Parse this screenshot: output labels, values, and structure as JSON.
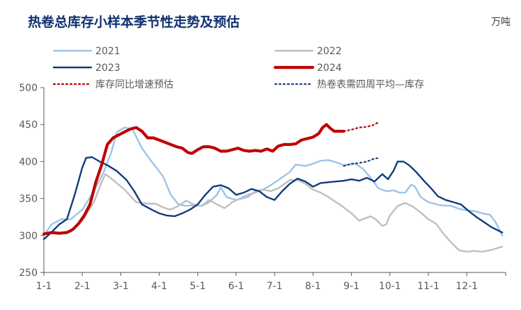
{
  "chart_data": {
    "type": "line",
    "title": "热卷总库存小样本季节性走势及预估",
    "unit": "万吨",
    "ylim": [
      250,
      500
    ],
    "yticks": [
      250,
      300,
      350,
      400,
      450,
      500
    ],
    "xticks": [
      "1-1",
      "2-1",
      "3-1",
      "4-1",
      "5-1",
      "6-1",
      "7-1",
      "8-1",
      "9-1",
      "10-1",
      "11-1",
      "12-1"
    ],
    "xlim": [
      0,
      11.92
    ],
    "grid": false,
    "legend": "top",
    "series": [
      {
        "name": "2021",
        "color": "#9DC3E6",
        "width": 2.4,
        "dash": false,
        "points": [
          [
            0,
            300
          ],
          [
            0.2,
            315
          ],
          [
            0.45,
            322
          ],
          [
            0.7,
            322
          ],
          [
            1.0,
            335
          ],
          [
            1.3,
            360
          ],
          [
            1.55,
            385
          ],
          [
            1.75,
            412
          ],
          [
            1.9,
            440
          ],
          [
            2.1,
            446
          ],
          [
            2.3,
            444
          ],
          [
            2.55,
            418
          ],
          [
            2.8,
            400
          ],
          [
            3.1,
            380
          ],
          [
            3.3,
            355
          ],
          [
            3.5,
            342
          ],
          [
            3.7,
            340
          ],
          [
            3.9,
            341
          ],
          [
            4.1,
            340
          ],
          [
            4.3,
            345
          ],
          [
            4.5,
            355
          ],
          [
            4.6,
            365
          ],
          [
            4.75,
            352
          ],
          [
            5.0,
            348
          ],
          [
            5.3,
            352
          ],
          [
            5.5,
            360
          ],
          [
            5.7,
            362
          ],
          [
            5.9,
            368
          ],
          [
            6.1,
            375
          ],
          [
            6.4,
            386
          ],
          [
            6.55,
            396
          ],
          [
            6.8,
            394
          ],
          [
            7.0,
            397
          ],
          [
            7.2,
            401
          ],
          [
            7.4,
            402
          ],
          [
            7.6,
            399
          ],
          [
            7.8,
            395
          ],
          [
            8.1,
            397
          ],
          [
            8.3,
            390
          ],
          [
            8.5,
            378
          ],
          [
            8.7,
            364
          ],
          [
            8.9,
            360
          ],
          [
            9.1,
            361
          ],
          [
            9.25,
            358
          ],
          [
            9.4,
            358
          ],
          [
            9.55,
            369
          ],
          [
            9.65,
            366
          ],
          [
            9.8,
            352
          ],
          [
            10.0,
            345
          ],
          [
            10.3,
            341
          ],
          [
            10.6,
            340
          ],
          [
            10.8,
            336
          ],
          [
            11.0,
            334
          ],
          [
            11.2,
            333
          ],
          [
            11.4,
            330
          ],
          [
            11.6,
            328
          ],
          [
            11.75,
            318
          ],
          [
            11.92,
            300
          ]
        ]
      },
      {
        "name": "2022",
        "color": "#BFBFBF",
        "width": 2.4,
        "dash": false,
        "points": [
          [
            0,
            302
          ],
          [
            0.3,
            303
          ],
          [
            0.7,
            305
          ],
          [
            1.0,
            320
          ],
          [
            1.3,
            345
          ],
          [
            1.5,
            372
          ],
          [
            1.6,
            383
          ],
          [
            1.8,
            375
          ],
          [
            2.1,
            362
          ],
          [
            2.4,
            345
          ],
          [
            2.7,
            343
          ],
          [
            2.9,
            343
          ],
          [
            3.1,
            338
          ],
          [
            3.3,
            335
          ],
          [
            3.5,
            340
          ],
          [
            3.7,
            347
          ],
          [
            3.9,
            342
          ],
          [
            4.1,
            340
          ],
          [
            4.3,
            348
          ],
          [
            4.5,
            342
          ],
          [
            4.7,
            337
          ],
          [
            4.9,
            345
          ],
          [
            5.1,
            350
          ],
          [
            5.3,
            355
          ],
          [
            5.5,
            358
          ],
          [
            5.7,
            362
          ],
          [
            5.9,
            360
          ],
          [
            6.1,
            364
          ],
          [
            6.4,
            375
          ],
          [
            6.6,
            375
          ],
          [
            6.8,
            370
          ],
          [
            7.0,
            362
          ],
          [
            7.2,
            358
          ],
          [
            7.4,
            352
          ],
          [
            7.6,
            345
          ],
          [
            7.8,
            338
          ],
          [
            8.0,
            330
          ],
          [
            8.2,
            320
          ],
          [
            8.35,
            323
          ],
          [
            8.5,
            326
          ],
          [
            8.65,
            321
          ],
          [
            8.8,
            313
          ],
          [
            8.9,
            315
          ],
          [
            9.0,
            327
          ],
          [
            9.2,
            340
          ],
          [
            9.4,
            344
          ],
          [
            9.6,
            339
          ],
          [
            9.8,
            331
          ],
          [
            10.0,
            322
          ],
          [
            10.2,
            316
          ],
          [
            10.4,
            302
          ],
          [
            10.6,
            290
          ],
          [
            10.8,
            280
          ],
          [
            11.0,
            278
          ],
          [
            11.2,
            279
          ],
          [
            11.4,
            278
          ],
          [
            11.6,
            280
          ],
          [
            11.8,
            283
          ],
          [
            11.92,
            285
          ]
        ]
      },
      {
        "name": "2023",
        "color": "#0F3B7E",
        "width": 2.4,
        "dash": false,
        "points": [
          [
            0,
            295
          ],
          [
            0.15,
            302
          ],
          [
            0.4,
            315
          ],
          [
            0.6,
            322
          ],
          [
            0.8,
            355
          ],
          [
            1.0,
            392
          ],
          [
            1.1,
            405
          ],
          [
            1.25,
            406
          ],
          [
            1.45,
            400
          ],
          [
            1.65,
            395
          ],
          [
            1.9,
            387
          ],
          [
            2.15,
            375
          ],
          [
            2.35,
            360
          ],
          [
            2.55,
            342
          ],
          [
            2.8,
            335
          ],
          [
            3.0,
            330
          ],
          [
            3.2,
            327
          ],
          [
            3.4,
            326
          ],
          [
            3.6,
            330
          ],
          [
            3.8,
            335
          ],
          [
            4.0,
            342
          ],
          [
            4.2,
            355
          ],
          [
            4.4,
            366
          ],
          [
            4.6,
            368
          ],
          [
            4.8,
            364
          ],
          [
            5.0,
            355
          ],
          [
            5.2,
            358
          ],
          [
            5.4,
            363
          ],
          [
            5.6,
            360
          ],
          [
            5.8,
            352
          ],
          [
            6.0,
            348
          ],
          [
            6.2,
            360
          ],
          [
            6.4,
            370
          ],
          [
            6.6,
            377
          ],
          [
            6.8,
            373
          ],
          [
            7.0,
            366
          ],
          [
            7.2,
            371
          ],
          [
            7.4,
            372
          ],
          [
            7.6,
            373
          ],
          [
            7.8,
            374
          ],
          [
            8.0,
            376
          ],
          [
            8.2,
            374
          ],
          [
            8.4,
            378
          ],
          [
            8.6,
            373
          ],
          [
            8.8,
            383
          ],
          [
            8.95,
            376
          ],
          [
            9.1,
            388
          ],
          [
            9.2,
            400
          ],
          [
            9.35,
            400
          ],
          [
            9.5,
            395
          ],
          [
            9.7,
            385
          ],
          [
            9.9,
            373
          ],
          [
            10.05,
            365
          ],
          [
            10.25,
            353
          ],
          [
            10.45,
            348
          ],
          [
            10.65,
            345
          ],
          [
            10.85,
            342
          ],
          [
            11.05,
            333
          ],
          [
            11.25,
            325
          ],
          [
            11.45,
            318
          ],
          [
            11.65,
            311
          ],
          [
            11.92,
            304
          ]
        ]
      },
      {
        "name": "2024",
        "color": "#C00000",
        "width": 4.2,
        "dash": false,
        "points": [
          [
            0,
            302
          ],
          [
            0.2,
            304
          ],
          [
            0.4,
            303
          ],
          [
            0.6,
            304
          ],
          [
            0.75,
            308
          ],
          [
            0.9,
            316
          ],
          [
            1.05,
            327
          ],
          [
            1.2,
            342
          ],
          [
            1.35,
            372
          ],
          [
            1.5,
            395
          ],
          [
            1.65,
            423
          ],
          [
            1.8,
            432
          ],
          [
            1.95,
            436
          ],
          [
            2.1,
            440
          ],
          [
            2.25,
            444
          ],
          [
            2.4,
            446
          ],
          [
            2.55,
            441
          ],
          [
            2.7,
            432
          ],
          [
            2.85,
            432
          ],
          [
            3.0,
            429
          ],
          [
            3.15,
            426
          ],
          [
            3.3,
            423
          ],
          [
            3.45,
            420
          ],
          [
            3.6,
            418
          ],
          [
            3.75,
            412
          ],
          [
            3.85,
            411
          ],
          [
            4.0,
            416
          ],
          [
            4.15,
            420
          ],
          [
            4.3,
            420
          ],
          [
            4.45,
            418
          ],
          [
            4.6,
            414
          ],
          [
            4.75,
            414
          ],
          [
            4.9,
            416
          ],
          [
            5.05,
            418
          ],
          [
            5.2,
            415
          ],
          [
            5.35,
            414
          ],
          [
            5.5,
            415
          ],
          [
            5.65,
            414
          ],
          [
            5.8,
            417
          ],
          [
            5.95,
            414
          ],
          [
            6.1,
            421
          ],
          [
            6.25,
            423
          ],
          [
            6.4,
            423
          ],
          [
            6.55,
            424
          ],
          [
            6.7,
            429
          ],
          [
            6.85,
            431
          ],
          [
            7.0,
            433
          ],
          [
            7.15,
            438
          ],
          [
            7.25,
            446
          ],
          [
            7.35,
            450
          ],
          [
            7.45,
            445
          ],
          [
            7.55,
            441
          ],
          [
            7.8,
            441
          ]
        ]
      },
      {
        "name": "库存同比增速预估",
        "color": "#C00000",
        "width": 2.2,
        "dash": true,
        "points": [
          [
            7.8,
            441
          ],
          [
            8.0,
            443
          ],
          [
            8.2,
            446
          ],
          [
            8.4,
            447
          ],
          [
            8.55,
            449
          ],
          [
            8.7,
            453
          ]
        ]
      },
      {
        "name": "热卷表需四周平均—库存",
        "color": "#1F3F78",
        "width": 2.2,
        "dash": true,
        "points": [
          [
            7.8,
            394
          ],
          [
            8.0,
            397
          ],
          [
            8.2,
            398
          ],
          [
            8.4,
            400
          ],
          [
            8.6,
            404
          ],
          [
            8.75,
            405
          ]
        ]
      }
    ]
  }
}
